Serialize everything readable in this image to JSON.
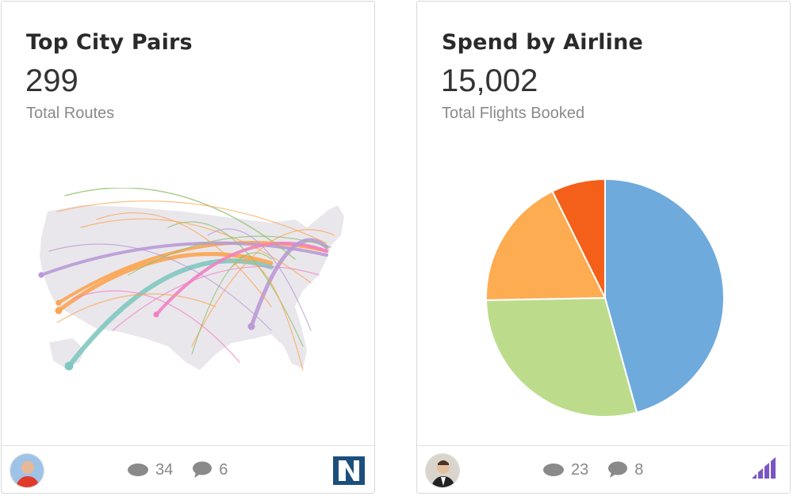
{
  "cards": [
    {
      "title": "Top City Pairs",
      "metric": "299",
      "subtitle": "Total Routes",
      "views": "34",
      "comments": "6",
      "brand_icon": "netsuite-logo-icon"
    },
    {
      "title": "Spend by Airline",
      "metric": "15,002",
      "subtitle": "Total Flights Booked",
      "views": "23",
      "comments": "8",
      "brand_icon": "bars-logo-icon"
    }
  ],
  "colors": {
    "pie_blue": "#6faadc",
    "pie_green": "#bcdc8c",
    "pie_orange": "#fdac52",
    "pie_red": "#f46019",
    "map_land": "#e9e7ec",
    "route_orange": "#fca450",
    "route_teal": "#7fc8c0",
    "route_purple": "#b99ad6",
    "route_pink": "#f27fc3",
    "route_green": "#8cc06a"
  },
  "chart_data": {
    "type": "pie",
    "title": "",
    "slices": [
      {
        "label": "",
        "value": 45.7,
        "color": "#6faadc"
      },
      {
        "label": "",
        "value": 29.0,
        "color": "#bcdc8c"
      },
      {
        "label": "",
        "value": 18.0,
        "color": "#fdac52"
      },
      {
        "label": "",
        "value": 7.3,
        "color": "#f46019"
      }
    ]
  }
}
